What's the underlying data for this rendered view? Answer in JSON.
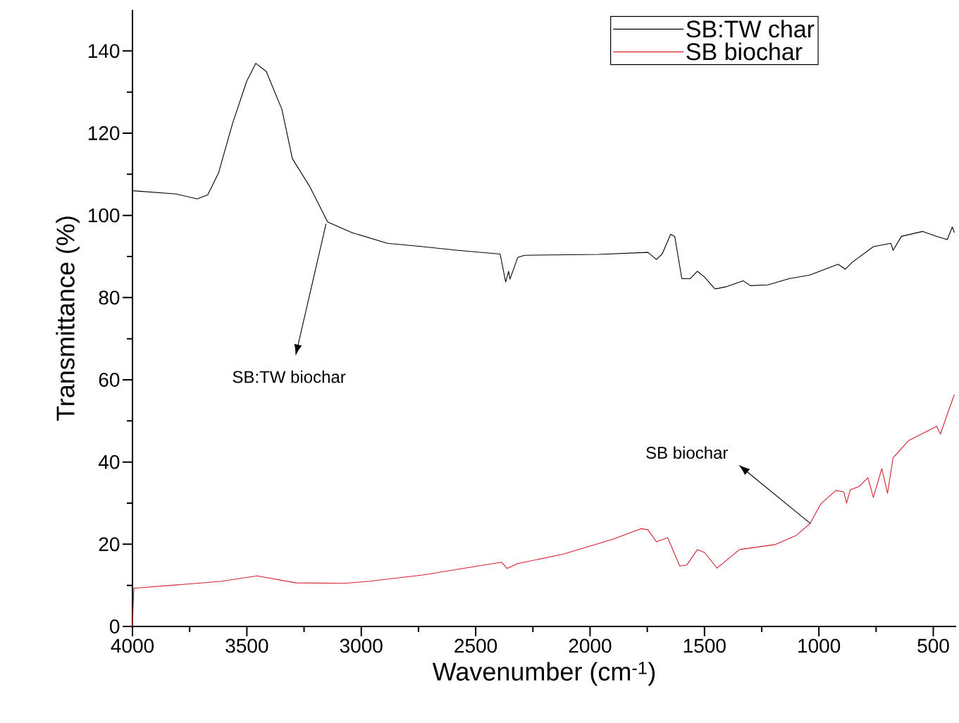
{
  "chart_data": {
    "type": "line",
    "xlabel": "Wavenumber (cm$^{-1}$)",
    "ylabel": "Transmittance (%)",
    "xlim": [
      4000,
      400
    ],
    "xticks": [
      4000,
      3500,
      3000,
      2500,
      2000,
      1500,
      1000,
      500
    ],
    "ylim": [
      0,
      150
    ],
    "yticks": [
      0,
      20,
      40,
      60,
      80,
      100,
      120,
      140
    ],
    "legend": "top right",
    "grid": false,
    "marker": "none",
    "line_style": "solid",
    "series": [
      {
        "name": "SB:TW char",
        "color": "#000000",
        "x": [
          4000,
          3809,
          3717,
          3671,
          3624,
          3563,
          3501,
          3461,
          3415,
          3347,
          3301,
          3224,
          3147,
          3040,
          2886,
          2732,
          2578,
          2393,
          2369,
          2356,
          2350,
          2316,
          2286,
          1962,
          1747,
          1710,
          1685,
          1648,
          1630,
          1599,
          1562,
          1531,
          1500,
          1454,
          1408,
          1331,
          1300,
          1223,
          1131,
          1039,
          916,
          885,
          854,
          762,
          685,
          676,
          639,
          546,
          485,
          439,
          417,
          408
        ],
        "values": [
          106,
          105.2,
          104,
          105,
          110.3,
          122.3,
          132.6,
          137,
          135,
          125.8,
          113.8,
          106.9,
          98.4,
          95.8,
          93.2,
          92.4,
          91.5,
          90.6,
          83.8,
          86.4,
          84.5,
          89.8,
          90.3,
          90.5,
          91,
          89.3,
          90.6,
          95.4,
          94.9,
          84.6,
          84.6,
          86.4,
          85,
          82.1,
          82.6,
          84.1,
          82.9,
          83.1,
          84.6,
          85.5,
          88.1,
          86.9,
          88.6,
          92.4,
          93.2,
          91.5,
          94.9,
          96.1,
          94.9,
          94.1,
          97.2,
          95.8
        ]
      },
      {
        "name": "SB biochar",
        "color": "#d62030",
        "x": [
          4000,
          3994,
          3717,
          3609,
          3455,
          3286,
          3070,
          2963,
          2732,
          2424,
          2387,
          2363,
          2316,
          2116,
          1901,
          1777,
          1747,
          1710,
          1661,
          1608,
          1578,
          1531,
          1500,
          1445,
          1347,
          1193,
          1100,
          1039,
          992,
          925,
          891,
          879,
          863,
          823,
          786,
          762,
          725,
          700,
          676,
          608,
          485,
          469,
          439,
          408
        ],
        "values": [
          0,
          9.3,
          10.5,
          11,
          12.3,
          10.6,
          10.5,
          11,
          12.5,
          15.3,
          15.6,
          14.1,
          15.3,
          17.6,
          21.2,
          23.8,
          23.5,
          20.6,
          21.6,
          14.7,
          14.9,
          18.7,
          18,
          14.2,
          18.7,
          19.9,
          22.1,
          25,
          29.8,
          33.1,
          32.7,
          30,
          33.2,
          34.1,
          36.2,
          31.4,
          38.4,
          32.4,
          41,
          45.2,
          48.7,
          46.8,
          51.6,
          56.4
        ]
      }
    ],
    "annotations": [
      "SB:TW biochar",
      "SB biochar"
    ]
  }
}
